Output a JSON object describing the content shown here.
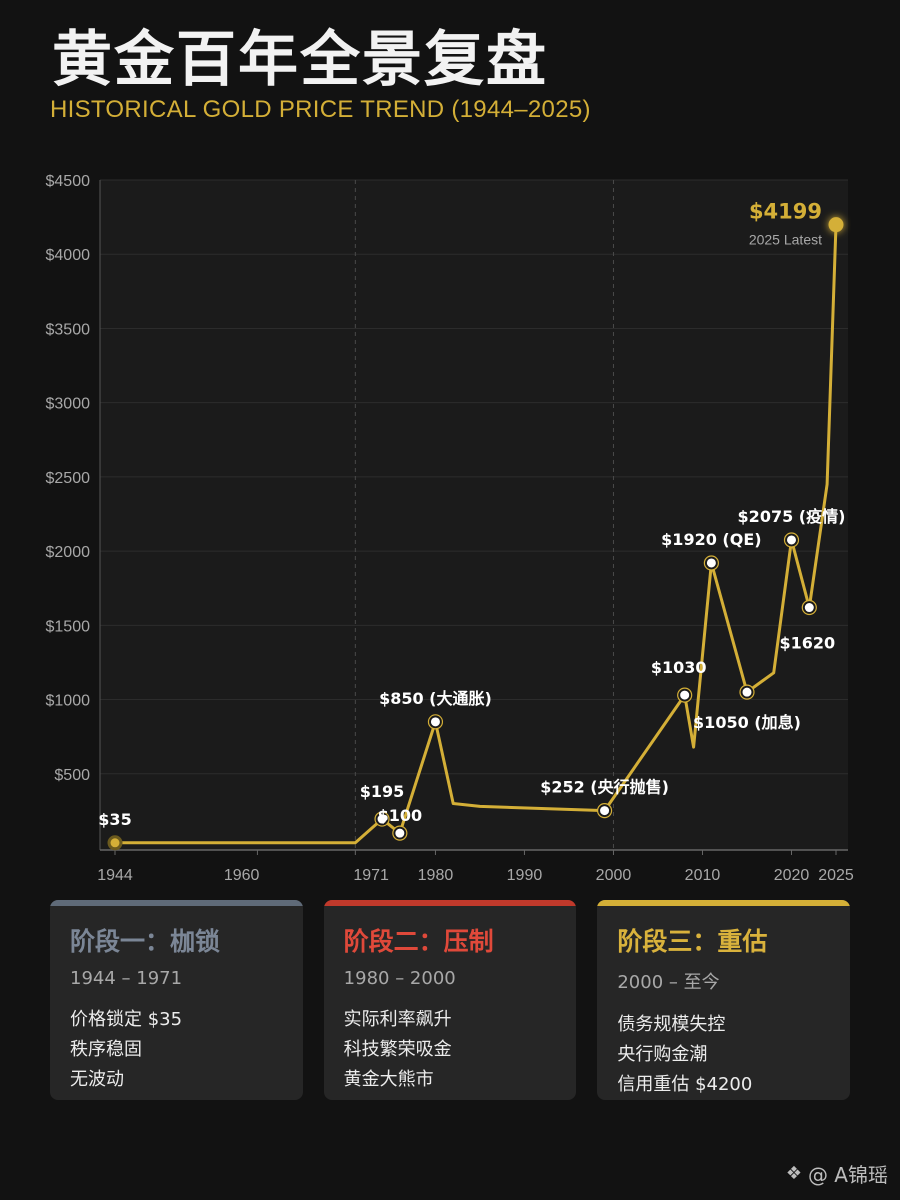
{
  "header": {
    "title": "黄金百年全景复盘",
    "subtitle": "HISTORICAL GOLD PRICE TREND (1944–2025)"
  },
  "colors": {
    "accent": "#d4af37",
    "stage1": "#5f6a78",
    "stage2": "#c0392b",
    "stage3": "#d4af37"
  },
  "chart_data": {
    "type": "line",
    "title": "",
    "xlabel": "",
    "ylabel": "",
    "xlim": [
      1944,
      2025
    ],
    "ylim": [
      0,
      4500
    ],
    "x_ticks": [
      1944,
      1960,
      1971,
      1980,
      1990,
      2000,
      2010,
      2020,
      2025
    ],
    "x_tick_labels": [
      "1944",
      "1960",
      "1971",
      "1980",
      "1990",
      "2000",
      "2010",
      "2020",
      "2025"
    ],
    "y_ticks": [
      500,
      1000,
      1500,
      2000,
      2500,
      3000,
      3500,
      4000,
      4500
    ],
    "y_tick_labels": [
      "$500",
      "$1000",
      "$1500",
      "$2000",
      "$2500",
      "$3000",
      "$3500",
      "$4000",
      "$4500"
    ],
    "grid": "horizontal",
    "dividers_years": [
      1971,
      2000
    ],
    "series": [
      {
        "points": [
          {
            "x": 1944,
            "y": 35
          },
          {
            "x": 1971,
            "y": 35
          },
          {
            "x": 1974,
            "y": 195
          },
          {
            "x": 1976,
            "y": 100
          },
          {
            "x": 1980,
            "y": 850
          },
          {
            "x": 1982,
            "y": 300
          },
          {
            "x": 1985,
            "y": 280
          },
          {
            "x": 1999,
            "y": 252
          },
          {
            "x": 2008,
            "y": 1030
          },
          {
            "x": 2009,
            "y": 680
          },
          {
            "x": 2011,
            "y": 1920
          },
          {
            "x": 2015,
            "y": 1050
          },
          {
            "x": 2018,
            "y": 1180
          },
          {
            "x": 2020,
            "y": 2075
          },
          {
            "x": 2022,
            "y": 1620
          },
          {
            "x": 2024,
            "y": 2450
          },
          {
            "x": 2025,
            "y": 4199
          }
        ]
      }
    ],
    "annotations": [
      {
        "x": 1944,
        "y": 35,
        "text": "$35",
        "pos": "above"
      },
      {
        "x": 1974,
        "y": 195,
        "text": "$195",
        "pos": "above"
      },
      {
        "x": 1976,
        "y": 100,
        "text": "$100",
        "pos": "above"
      },
      {
        "x": 1980,
        "y": 850,
        "text": "$850 (大通胀)",
        "pos": "above"
      },
      {
        "x": 1999,
        "y": 252,
        "text": "$252 (央行抛售)",
        "pos": "above"
      },
      {
        "x": 2008,
        "y": 1030,
        "text": "$1030",
        "pos": "above"
      },
      {
        "x": 2011,
        "y": 1920,
        "text": "$1920 (QE)",
        "pos": "above"
      },
      {
        "x": 2015,
        "y": 1050,
        "text": "$1050 (加息)",
        "pos": "below"
      },
      {
        "x": 2020,
        "y": 2075,
        "text": "$2075 (疫情)",
        "pos": "above"
      },
      {
        "x": 2022,
        "y": 1620,
        "text": "$1620",
        "pos": "below"
      }
    ],
    "latest": {
      "value_text": "$4199",
      "label": "2025 Latest"
    }
  },
  "stages": [
    {
      "title": "阶段一：枷锁",
      "range": "1944 – 1971",
      "lines": [
        "价格锁定 $35",
        "秩序稳固",
        "无波动"
      ]
    },
    {
      "title": "阶段二：压制",
      "range": "1980 – 2000",
      "lines": [
        "实际利率飙升",
        "科技繁荣吸金",
        "黄金大熊市"
      ]
    },
    {
      "title": "阶段三：重估",
      "range": "2000 – 至今",
      "lines": [
        "债务规模失控",
        "央行购金潮",
        "信用重估 $4200"
      ]
    }
  ],
  "watermark": {
    "text": "@ A锦瑶",
    "icon": "binance-diamond-icon"
  }
}
